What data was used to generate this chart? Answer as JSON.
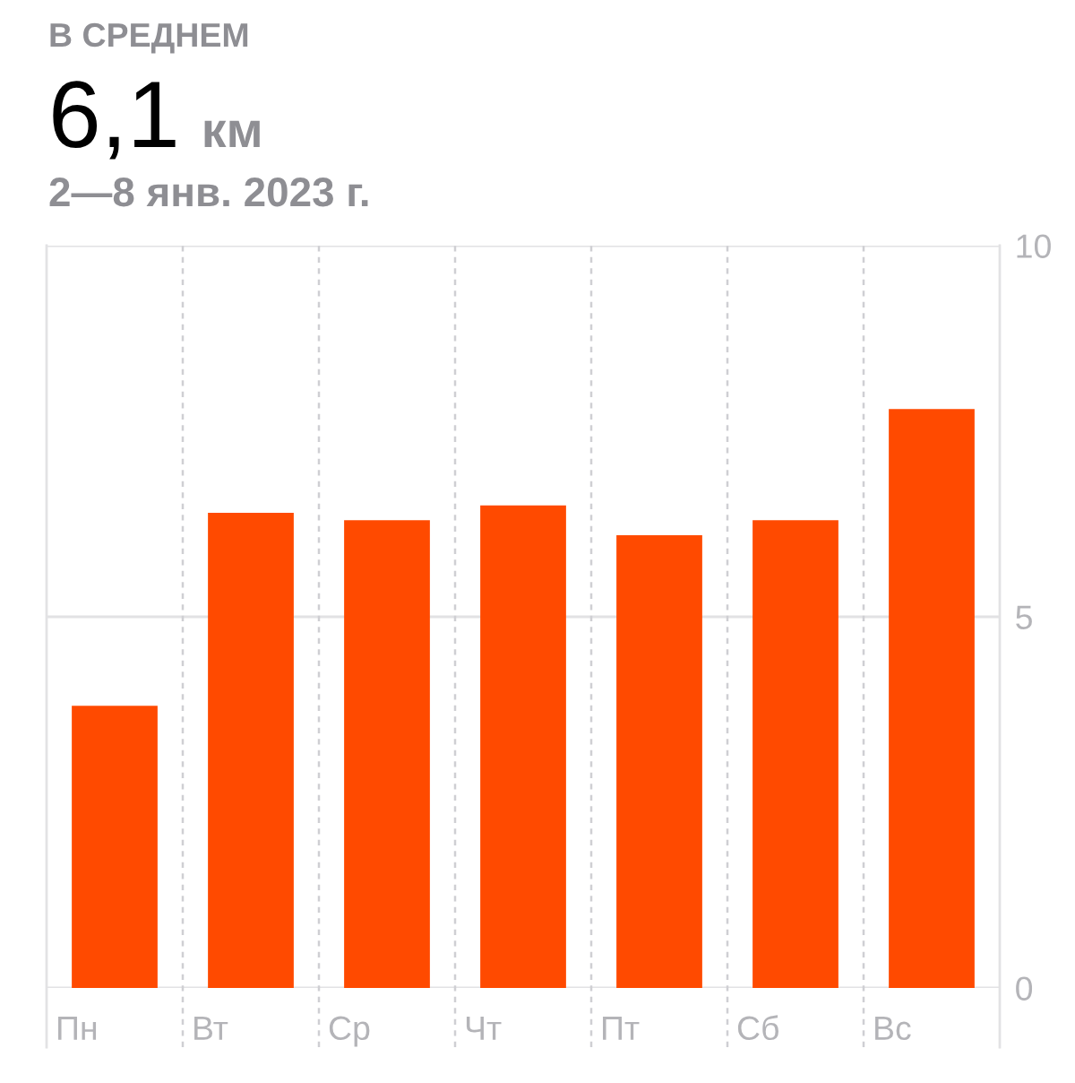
{
  "chart_data": {
    "type": "bar",
    "title": "В СРЕДНЕМ",
    "annotations": [
      "6,1",
      "км"
    ],
    "subtitle": "2—8 янв. 2023 г.",
    "categories": [
      "Пн",
      "Вт",
      "Ср",
      "Чт",
      "Пт",
      "Сб",
      "Вс"
    ],
    "values": [
      3.8,
      6.4,
      6.3,
      6.5,
      6.1,
      6.3,
      7.8
    ],
    "color": "#ff4a00",
    "ylim": [
      0,
      10
    ],
    "yticks": [
      0,
      5,
      10
    ],
    "grid": true
  }
}
